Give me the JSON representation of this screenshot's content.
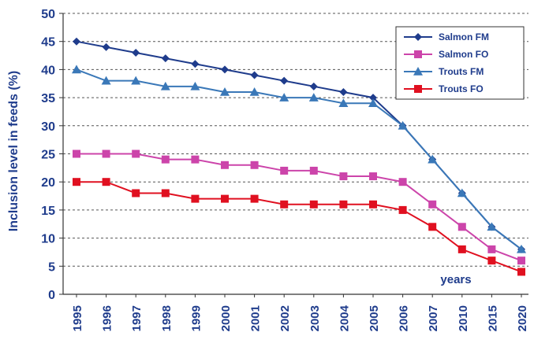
{
  "chart_data": {
    "type": "line",
    "title": "",
    "xlabel": "",
    "ylabel": "Inclusion level in feeds (%)",
    "annotation": "years",
    "categories": [
      "1995",
      "1996",
      "1997",
      "1998",
      "1999",
      "2000",
      "2001",
      "2002",
      "2003",
      "2004",
      "2005",
      "2006",
      "2007",
      "2010",
      "2015",
      "2020"
    ],
    "ylim": [
      0,
      50
    ],
    "yticks": [
      0,
      5,
      10,
      15,
      20,
      25,
      30,
      35,
      40,
      45,
      50
    ],
    "grid": true,
    "legend_position": "top-right",
    "series": [
      {
        "name": "Salmon FM",
        "color": "#1f3c8c",
        "marker": "diamond",
        "values": [
          45,
          44,
          43,
          42,
          41,
          40,
          39,
          38,
          37,
          36,
          35,
          30,
          24,
          18,
          12,
          8
        ]
      },
      {
        "name": "Salmon FO",
        "color": "#cc44aa",
        "marker": "square",
        "values": [
          25,
          25,
          25,
          24,
          24,
          23,
          23,
          22,
          22,
          21,
          21,
          20,
          16,
          12,
          8,
          6
        ]
      },
      {
        "name": "Trouts FM",
        "color": "#3a78b8",
        "marker": "triangle",
        "values": [
          40,
          38,
          38,
          37,
          37,
          36,
          36,
          35,
          35,
          34,
          34,
          30,
          24,
          18,
          12,
          8
        ]
      },
      {
        "name": "Trouts FO",
        "color": "#e01020",
        "marker": "square",
        "values": [
          20,
          20,
          18,
          18,
          17,
          17,
          17,
          16,
          16,
          16,
          16,
          15,
          12,
          8,
          6,
          4
        ]
      }
    ]
  }
}
